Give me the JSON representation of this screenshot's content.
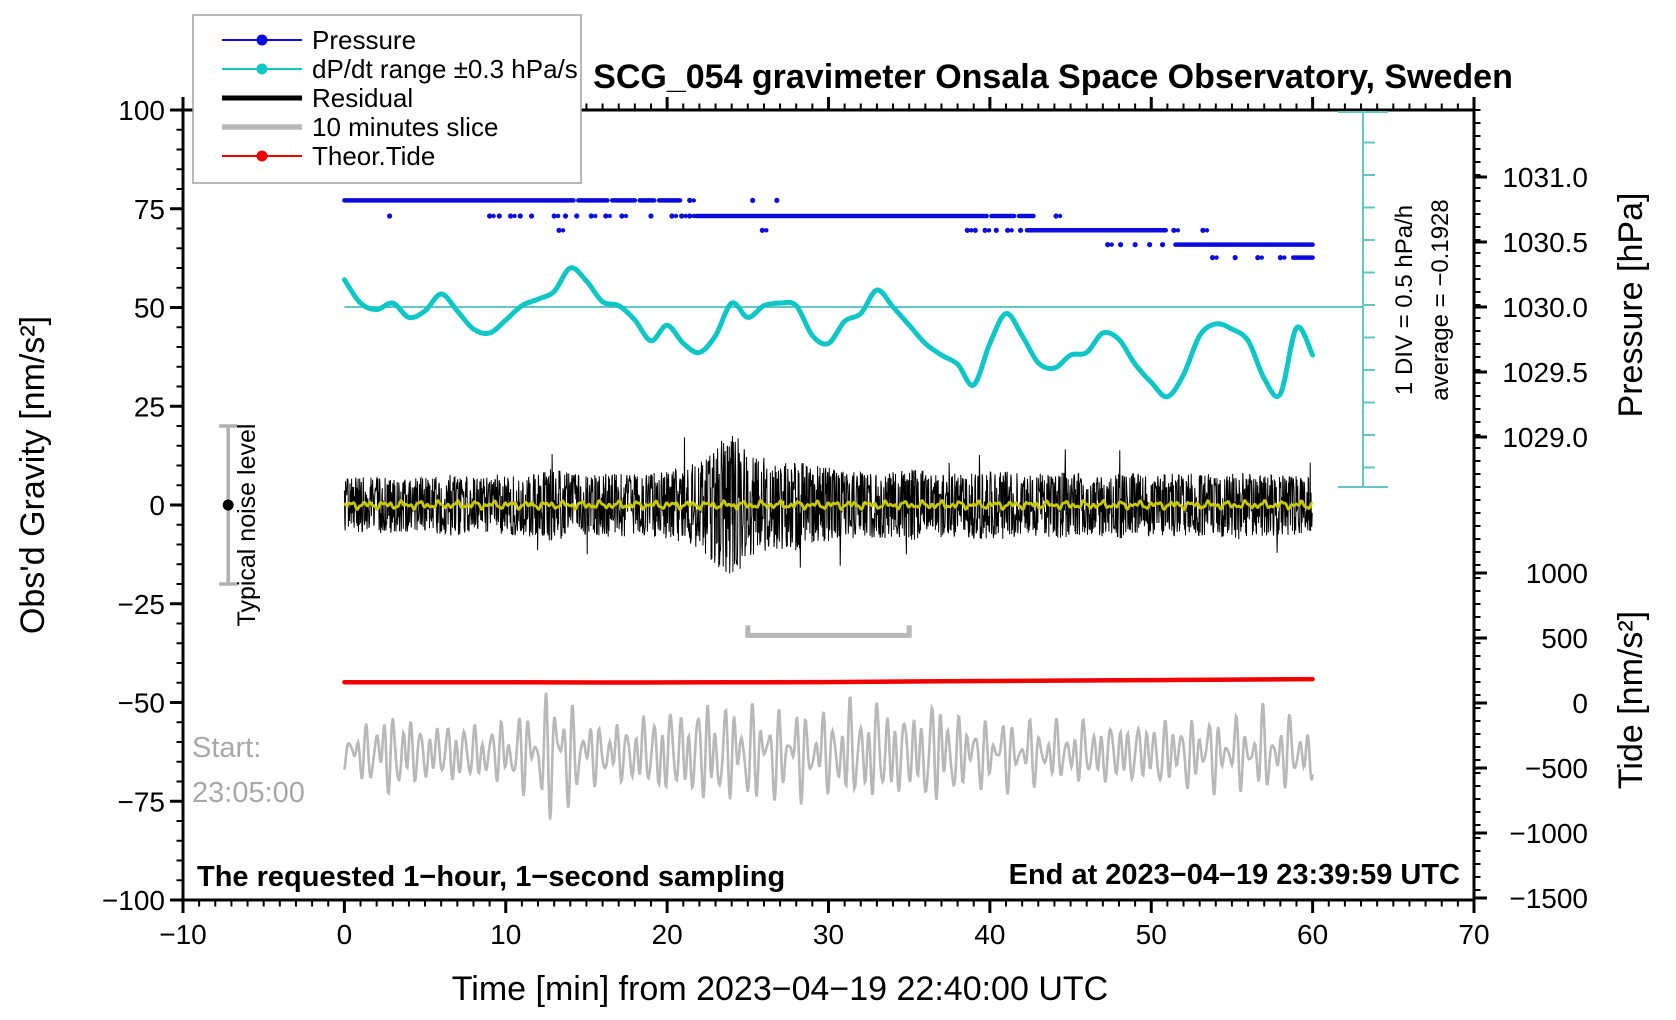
{
  "title": "SCG_054 gravimeter Onsala Space Observatory, Sweden",
  "legend": {
    "items": [
      {
        "label": "Pressure",
        "color": "#0b0bdf",
        "style": "line-dot"
      },
      {
        "label": "dP/dt range ±0.3 hPa/s",
        "color": "#0fc6c6",
        "style": "line-dot"
      },
      {
        "label": "Residual",
        "color": "#000000",
        "style": "thick-line"
      },
      {
        "label": "10 minutes slice",
        "color": "#b8b8b8",
        "style": "thick-line"
      },
      {
        "label": "Theor.Tide",
        "color": "#f20000",
        "style": "line-dot"
      }
    ]
  },
  "axes": {
    "x": {
      "label": "Time [min] from 2023−04−19 22:40:00 UTC",
      "min": -10,
      "max": 70,
      "major": 10,
      "minor": 1,
      "tick_values": [
        -10,
        0,
        10,
        20,
        30,
        40,
        50,
        60,
        70
      ],
      "tick_labels": [
        "−10",
        "0",
        "10",
        "20",
        "30",
        "40",
        "50",
        "60",
        "70"
      ]
    },
    "y_left": {
      "label": "Obs'd Gravity [nm/s²]",
      "min": -100,
      "max": 100,
      "major": 25,
      "minor": 5,
      "tick_values": [
        -100,
        -75,
        -50,
        -25,
        0,
        25,
        50,
        75,
        100
      ],
      "tick_labels": [
        "−100",
        "−75",
        "−50",
        "−25",
        "0",
        "25",
        "50",
        "75",
        "100"
      ]
    },
    "y_right_pressure": {
      "label": "Pressure [hPa]",
      "tick_values": [
        1031.0,
        1030.5,
        1030.0,
        1029.5,
        1029.0
      ],
      "tick_labels": [
        "1031.0",
        "1030.5",
        "1030.0",
        "1029.5",
        "1029.0"
      ]
    },
    "y_right_tide": {
      "label": "Tide [nm/s²]",
      "tick_values": [
        1000,
        500,
        0,
        -500,
        -1000,
        -1500
      ],
      "tick_labels": [
        "1000",
        "500",
        "0",
        "−500",
        "−1000",
        "−1500"
      ]
    }
  },
  "annotations": {
    "noise_bar": {
      "label": "Typical noise level",
      "time_min": -7.2,
      "center_gravity": 0,
      "half_range_gravity": 20
    },
    "div_scale_line1": "1 DIV = 0.5 hPa/h",
    "div_scale_line2": "average = −0.1928",
    "slice_bar": {
      "time_start": 25,
      "time_end": 35,
      "gravity": -33
    },
    "start_line1": "Start:",
    "start_line2": "23:05:00",
    "bottom_left": "The requested 1−hour, 1−second sampling",
    "bottom_right": "End at 2023−04−19 23:39:59 UTC"
  },
  "chart_data": {
    "type": "line",
    "title": "SCG_054 gravimeter Onsala Space Observatory, Sweden",
    "xlabel": "Time [min] from 2023−04−19 22:40:00 UTC",
    "x_range_min": [
      -10,
      70
    ],
    "gravity_range": [
      -100,
      100
    ],
    "pressure_axis_hpa": [
      1029.0,
      1031.5
    ],
    "tide_axis_range": [
      -1500,
      1000
    ],
    "grid": false,
    "legend_position": "top-left",
    "series": {
      "pressure_quantized_hpa": {
        "note": "quantized barometer readings drawn as horizontal dotted/solid bands",
        "levels": [
          {
            "hpa": 1030.82,
            "segments": [
              [
                0,
                14.2
              ],
              [
                14.5,
                16.3
              ],
              [
                16.6,
                18.0
              ],
              [
                18.3,
                19.2
              ],
              [
                19.5,
                20.8
              ]
            ],
            "dots": [
              21.4,
              25.3,
              26.8
            ]
          },
          {
            "hpa": 1030.7,
            "segments": [
              [
                21.8,
                39.8
              ],
              [
                40.1,
                41.5
              ],
              [
                41.8,
                42.7
              ]
            ],
            "dots": [
              2.8,
              9.0,
              9.6,
              10.3,
              10.9,
              11.6,
              13.0,
              13.7,
              14.4,
              15.3,
              16.2,
              17.2,
              19.0,
              20.3,
              20.9,
              21.4,
              44.1
            ]
          },
          {
            "hpa": 1030.59,
            "segments": [
              [
                42.3,
                50.9
              ]
            ],
            "dots": [
              13.3,
              25.9,
              38.6,
              39.1,
              39.7,
              40.4,
              41.1,
              41.9,
              51.4,
              53.2
            ]
          },
          {
            "hpa": 1030.48,
            "segments": [
              [
                51.5,
                60.0
              ]
            ],
            "dots": [
              47.3,
              48.1,
              49.0,
              49.9,
              50.7
            ]
          },
          {
            "hpa": 1030.38,
            "segments": [
              [
                58.8,
                60.0
              ]
            ],
            "dots": [
              53.8,
              55.2,
              56.6,
              58.0
            ]
          }
        ]
      },
      "dpdt_hpa_per_h": {
        "t_start": 0,
        "dt": 1,
        "zero_reference_pressure_hpa": 1030.0,
        "values": [
          0.21,
          0.03,
          -0.02,
          0.03,
          -0.08,
          -0.03,
          0.1,
          -0.03,
          -0.17,
          -0.2,
          -0.1,
          0.01,
          0.06,
          0.12,
          0.3,
          0.2,
          0.04,
          0.01,
          -0.1,
          -0.26,
          -0.14,
          -0.28,
          -0.35,
          -0.22,
          0.03,
          -0.08,
          0.01,
          0.03,
          0.01,
          -0.22,
          -0.28,
          -0.11,
          -0.05,
          0.13,
          0.0,
          -0.14,
          -0.28,
          -0.37,
          -0.44,
          -0.6,
          -0.28,
          -0.05,
          -0.22,
          -0.43,
          -0.47,
          -0.37,
          -0.35,
          -0.2,
          -0.25,
          -0.44,
          -0.58,
          -0.69,
          -0.52,
          -0.22,
          -0.13,
          -0.17,
          -0.26,
          -0.55,
          -0.67,
          -0.16,
          -0.37
        ]
      },
      "residual_nm_s2": {
        "t_start": 0,
        "t_end": 60,
        "center": 0,
        "half_amplitude_envelope_per_min": [
          7,
          7,
          7.5,
          7,
          7,
          7,
          7.5,
          8,
          7,
          7,
          7.5,
          8,
          8,
          9.5,
          8,
          7.5,
          8,
          8,
          8,
          8,
          8.5,
          9.5,
          11,
          15,
          19,
          14,
          12,
          11,
          12,
          10,
          9.5,
          8.5,
          8.5,
          8.5,
          8.5,
          9,
          9,
          8.5,
          8,
          8.5,
          9,
          8.5,
          8,
          8,
          8.5,
          8,
          8,
          8,
          8.5,
          8,
          8,
          8,
          8.5,
          8,
          8,
          8.5,
          8,
          8,
          8,
          7.5,
          7
        ]
      },
      "residual_smoothed_nm_s2": {
        "t_start": 0,
        "t_end": 60,
        "center": 0,
        "half_amplitude": 1.2,
        "color": "#c9c900"
      },
      "slice_10min_tide_nm_s2": {
        "t_start": 0,
        "t_end": 60,
        "center": -385,
        "half_amplitude_envelope_per_min": [
          150,
          220,
          300,
          360,
          300,
          240,
          230,
          270,
          230,
          240,
          270,
          340,
          320,
          650,
          420,
          280,
          240,
          240,
          290,
          310,
          390,
          330,
          430,
          440,
          390,
          410,
          390,
          360,
          390,
          310,
          330,
          430,
          390,
          430,
          390,
          310,
          430,
          460,
          310,
          290,
          270,
          290,
          240,
          270,
          240,
          240,
          270,
          240,
          270,
          240,
          270,
          290,
          270,
          310,
          290,
          270,
          310,
          340,
          310,
          270,
          210
        ]
      },
      "theor_tide_nm_s2": {
        "points_t": [
          0,
          8,
          16,
          24,
          30,
          37,
          44,
          50,
          55,
          60
        ],
        "points_v": [
          160,
          160,
          158,
          159,
          161,
          167,
          172,
          176,
          180,
          184
        ]
      }
    }
  },
  "colors": {
    "pressure_blue": "#0b0bdf",
    "dpdt_cyan": "#0fc6c6",
    "reference_teal": "#63c6c4",
    "residual_black": "#000000",
    "smoothed_yellow": "#c9c900",
    "slice_gray": "#b8b8b8",
    "tide_red": "#f20000",
    "noise_bar_gray": "#b0b0b0",
    "gray_text": "#a8a8a8"
  }
}
